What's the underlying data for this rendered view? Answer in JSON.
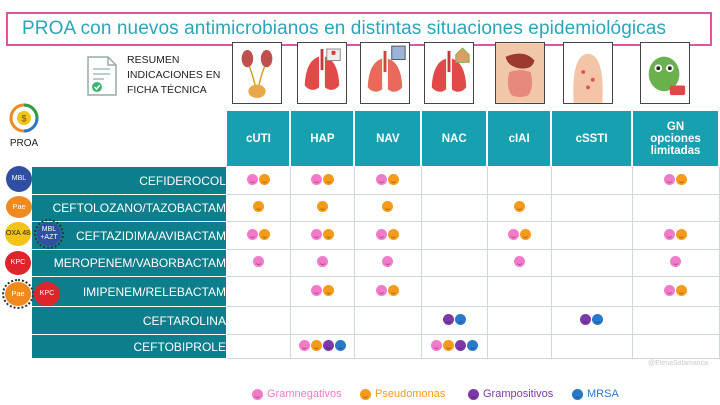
{
  "title": "PROA con nuevos antimicrobianos en distintas situaciones epidemiológicas",
  "summary_note": {
    "line1": "RESUMEN",
    "line2": "INDICACIONES EN",
    "line3": "FICHA TÉCNICA"
  },
  "proa_label": "PROA",
  "columns": [
    "cUTI",
    "HAP",
    "NAV",
    "NAC",
    "cIAI",
    "cSSTI",
    "GN opciones limitadas"
  ],
  "column_gn": {
    "l1": "GN",
    "l2": "opciones",
    "l3": "limitadas"
  },
  "drugs": [
    {
      "name": "CEFIDEROCOL",
      "cells": [
        [
          "pink",
          "orange"
        ],
        [
          "pink",
          "orange"
        ],
        [
          "pink",
          "orange"
        ],
        [],
        [],
        [],
        [
          "pink",
          "orange"
        ]
      ]
    },
    {
      "name": "CEFTOLOZANO/TAZOBACTAM",
      "cells": [
        [
          "orange"
        ],
        [
          "orange"
        ],
        [
          "orange"
        ],
        [],
        [
          "orange"
        ],
        [],
        []
      ]
    },
    {
      "name": "CEFTAZIDIMA/AVIBACTAM",
      "cells": [
        [
          "pink",
          "orange"
        ],
        [
          "pink",
          "orange"
        ],
        [
          "pink",
          "orange"
        ],
        [],
        [
          "pink",
          "orange"
        ],
        [],
        [
          "pink",
          "orange"
        ]
      ]
    },
    {
      "name": "MEROPENEM/VABORBACTAM",
      "cells": [
        [
          "pink"
        ],
        [
          "pink"
        ],
        [
          "pink"
        ],
        [],
        [
          "pink"
        ],
        [],
        [
          "pink"
        ]
      ]
    },
    {
      "name": "IMIPENEM/RELEBACTAM",
      "cells": [
        [],
        [
          "pink",
          "orange"
        ],
        [
          "pink",
          "orange"
        ],
        [],
        [],
        [],
        [
          "pink",
          "orange"
        ]
      ]
    },
    {
      "name": "CEFTAROLINA",
      "cells": [
        [],
        [],
        [],
        [
          "purple",
          "blue"
        ],
        [],
        [
          "purple",
          "blue"
        ],
        []
      ]
    },
    {
      "name": "CEFTOBIPROLE",
      "cells": [
        [],
        [
          "pink",
          "orange",
          "purple",
          "blue"
        ],
        [],
        [
          "pink",
          "orange",
          "purple",
          "blue"
        ],
        [],
        [],
        []
      ]
    }
  ],
  "mechanisms": {
    "mbl": "MBL",
    "pae": "Pae",
    "oxa": "OXA 48",
    "mbl_aztr": "MBL +AZT",
    "kpc": "KPC"
  },
  "watermark": "@ElenaSalamanca",
  "legend": [
    {
      "label": "Gramnegativos",
      "color": "#f27ac8"
    },
    {
      "label": "Pseudomonas",
      "color": "#f59a1b"
    },
    {
      "label": "Grampositivos",
      "color": "#7c3aa8"
    },
    {
      "label": "MRSA",
      "color": "#2a79c9"
    }
  ],
  "colors": {
    "header_teal": "#16a0b0",
    "drug_teal": "#0d7f8c",
    "title_text": "#2aa6b8",
    "title_border": "#e0559f"
  }
}
